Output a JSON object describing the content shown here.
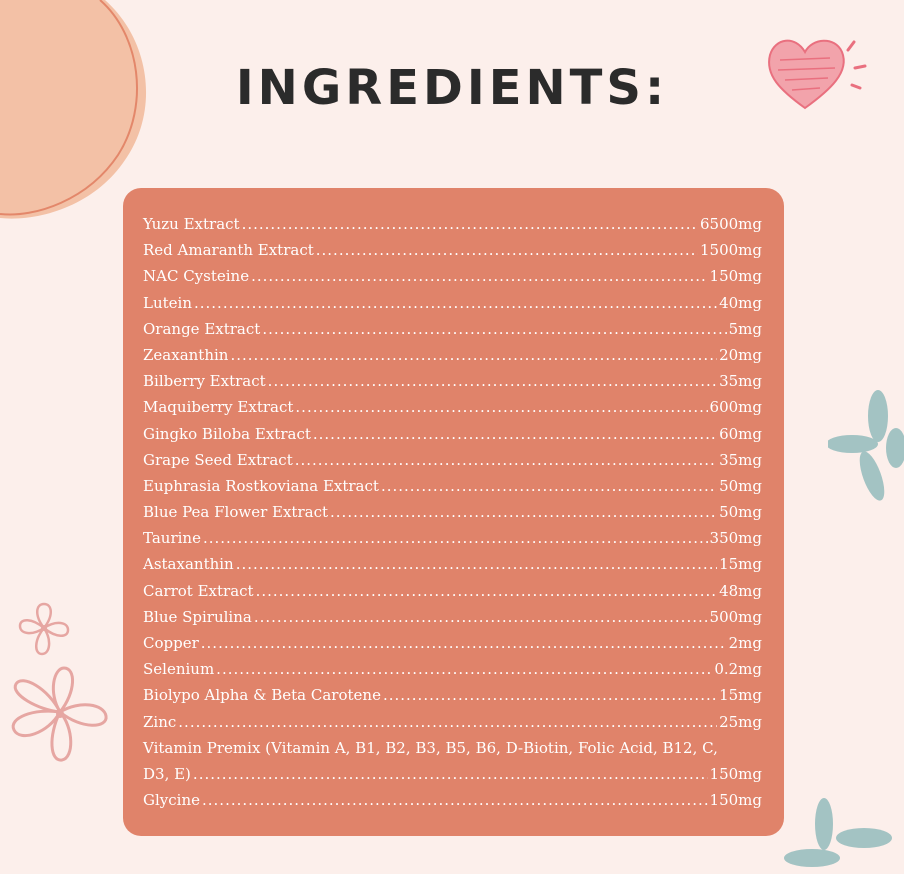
{
  "title": "INGREDIENTS:",
  "colors": {
    "background": "#fcefeb",
    "card": "#e0836a",
    "title": "#2b2b2b",
    "blob": "#f3c1a6",
    "heart": "#ef8a96",
    "flower_teal": "#a3c3c3",
    "flower_pink_outline": "#e6a6a2"
  },
  "ingredients": [
    {
      "name": "Yuzu Extract",
      "amount": "6500mg"
    },
    {
      "name": "Red Amaranth Extract",
      "amount": "1500mg"
    },
    {
      "name": "NAC Cysteine",
      "amount": "150mg"
    },
    {
      "name": "Lutein",
      "amount": "40mg"
    },
    {
      "name": "Orange Extract",
      "amount": "5mg"
    },
    {
      "name": "Zeaxanthin",
      "amount": "20mg"
    },
    {
      "name": "Bilberry Extract",
      "amount": "35mg"
    },
    {
      "name": "Maquiberry Extract",
      "amount": "600mg"
    },
    {
      "name": "Gingko Biloba Extract ",
      "amount": "60mg"
    },
    {
      "name": "Grape Seed Extract",
      "amount": "35mg"
    },
    {
      "name": "Euphrasia Rostkoviana Extract ",
      "amount": "50mg"
    },
    {
      "name": "Blue Pea Flower Extract",
      "amount": "50mg"
    },
    {
      "name": "Taurine",
      "amount": "350mg"
    },
    {
      "name": "Astaxanthin",
      "amount": "15mg"
    },
    {
      "name": "Carrot Extract",
      "amount": "48mg"
    },
    {
      "name": "Blue Spirulina",
      "amount": "500mg"
    },
    {
      "name": "Copper",
      "amount": "2mg"
    },
    {
      "name": "Selenium",
      "amount": "0.2mg"
    },
    {
      "name": "Biolypo Alpha & Beta Carotene",
      "amount": "15mg"
    },
    {
      "name": "Zinc",
      "amount": "25mg"
    }
  ],
  "vitamin_premix": {
    "line1": "Vitamin Premix (Vitamin A, B1, B2, B3, B5, B6, D-Biotin, Folic Acid, B12, C,",
    "line2_name": "D3, E)",
    "amount": "150mg"
  },
  "last_ingredient": {
    "name": "Glycine ",
    "amount": "150mg"
  }
}
